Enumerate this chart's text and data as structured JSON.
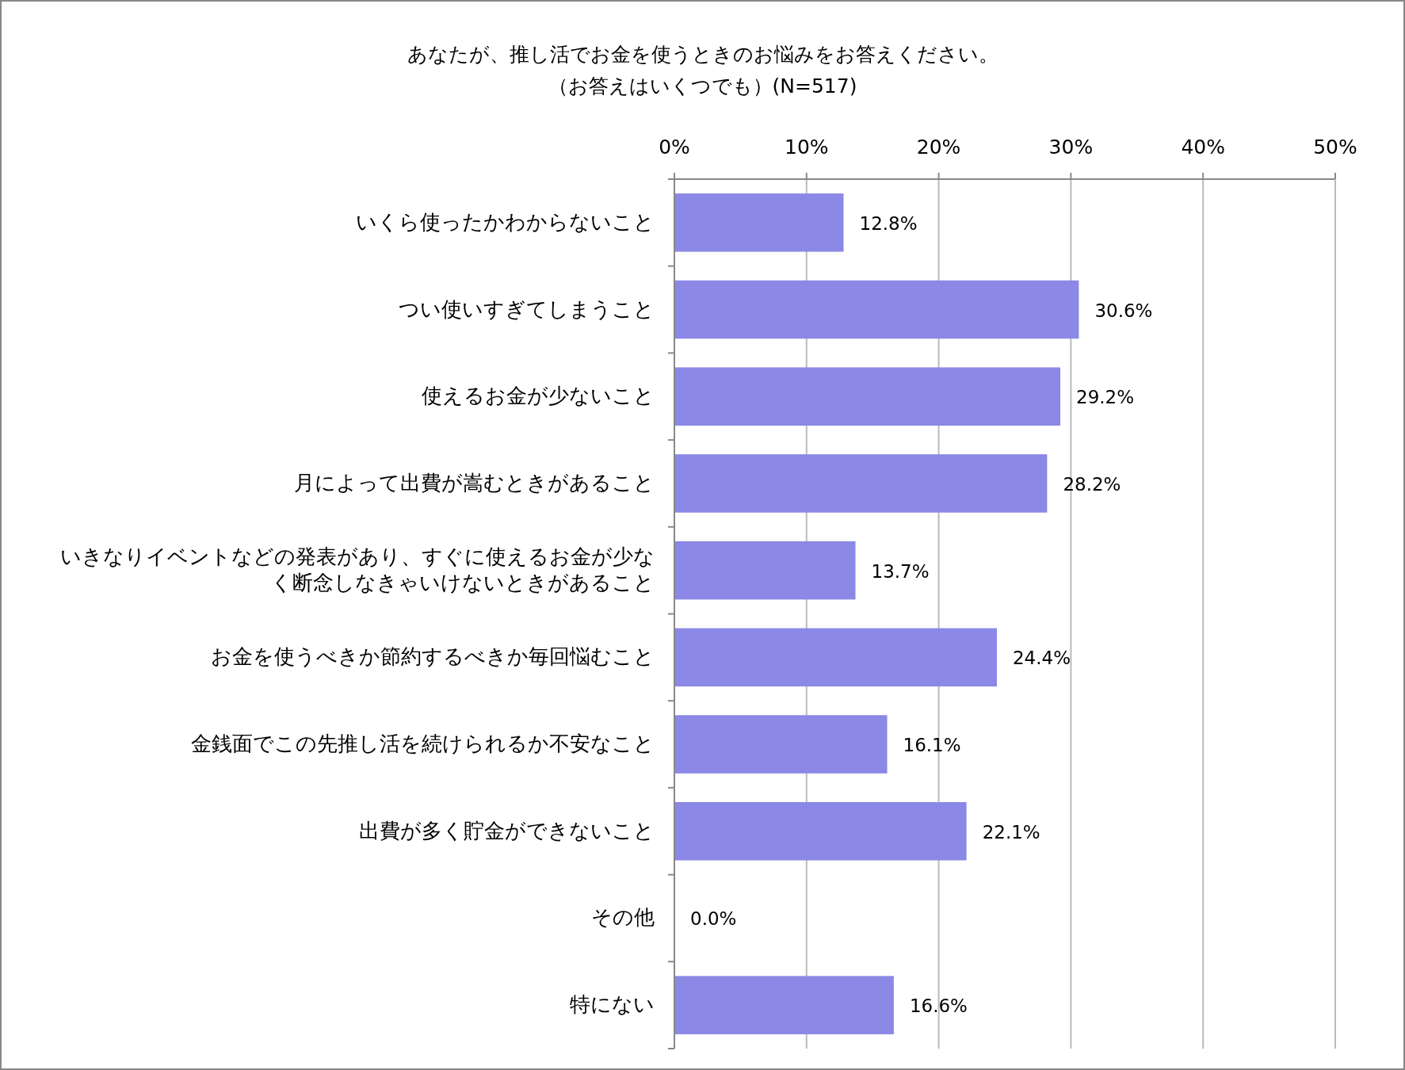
{
  "chart_data": {
    "type": "bar",
    "orientation": "horizontal",
    "title": "あなたが、推し活でお金を使うときのお悩みをお答えください。",
    "subtitle": "（お答えはいくつでも）(N=517)",
    "categories": [
      "いくら使ったかわからないこと",
      "つい使いすぎてしまうこと",
      "使えるお金が少ないこと",
      "月によって出費が嵩むときがあること",
      "いきなりイベントなどの発表があり、すぐに使えるお金が少なく断念しなきゃいけないときがあること",
      "お金を使うべきか節約するべきか毎回悩むこと",
      "金銭面でこの先推し活を続けられるか不安なこと",
      "出費が多く貯金ができないこと",
      "その他",
      "特にない"
    ],
    "values": [
      12.8,
      30.6,
      29.2,
      28.2,
      13.7,
      24.4,
      16.1,
      22.1,
      0.0,
      16.6
    ],
    "value_labels": [
      "12.8%",
      "30.6%",
      "29.2%",
      "28.2%",
      "13.7%",
      "24.4%",
      "16.1%",
      "22.1%",
      "0.0%",
      "16.6%"
    ],
    "color": "#8b88e6",
    "xlim": [
      0,
      50
    ],
    "xticks": [
      {
        "value": 0,
        "label": "0%"
      },
      {
        "value": 10,
        "label": "10%"
      },
      {
        "value": 20,
        "label": "20%"
      },
      {
        "value": 30,
        "label": "30%"
      },
      {
        "value": 40,
        "label": "40%"
      },
      {
        "value": 50,
        "label": "50%"
      }
    ],
    "grid": "x"
  }
}
